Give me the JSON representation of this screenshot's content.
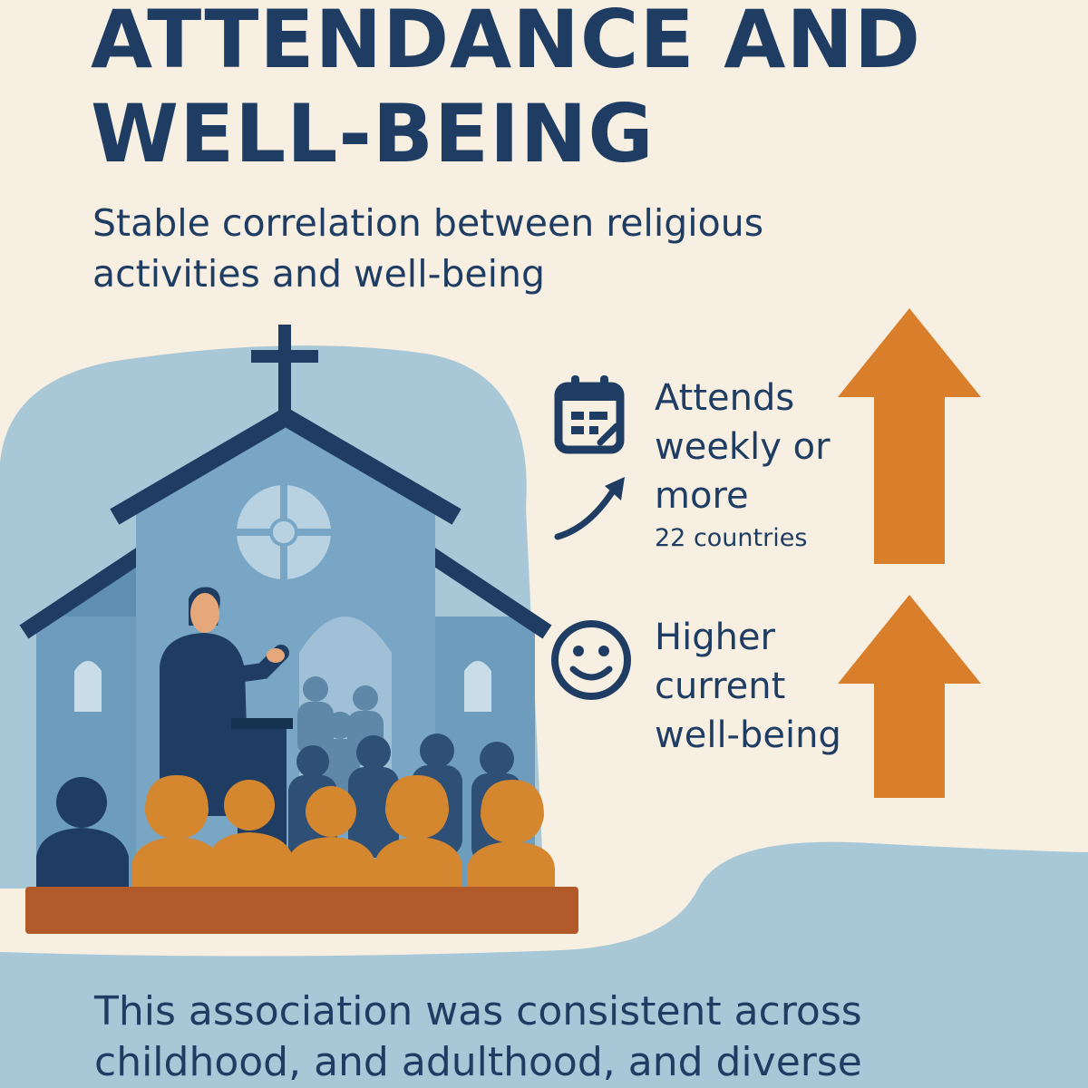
{
  "header": {
    "title_line1": "ATTENDANCE AND",
    "title_line2": "WELL-BEING",
    "subtitle_line1": "Stable correlation between religious",
    "subtitle_line2": "activities and well-being"
  },
  "stats": [
    {
      "icon": "calendar-icon",
      "label_lines": [
        "Attends",
        "weekly or",
        "more"
      ],
      "sub": "22 countries"
    },
    {
      "icon": "smiley-face-icon",
      "label_lines": [
        "Higher",
        "current",
        "well-being"
      ]
    }
  ],
  "footer": {
    "line1": "This association was consistent across",
    "line2": "childhood, and adulthood, and diverse"
  },
  "colors": {
    "background": "#f6efe2",
    "navy": "#1f3d63",
    "orange": "#d97f2c",
    "light_blue": "#a8c8d8",
    "mid_blue": "#6d9cbd"
  }
}
